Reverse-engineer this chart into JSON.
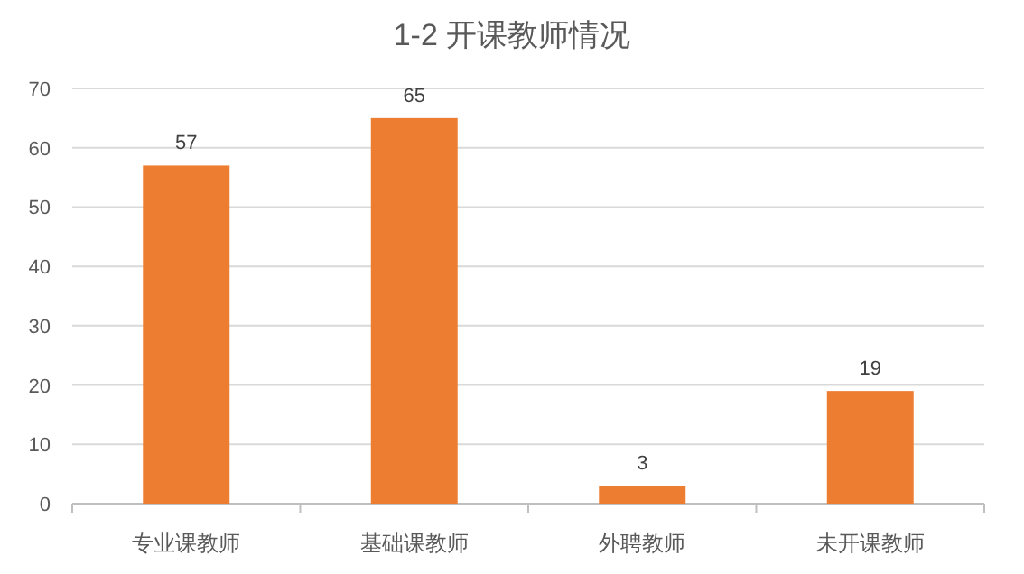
{
  "chart_data": {
    "type": "bar",
    "title": "1-2 开课教师情况",
    "categories": [
      "专业课教师",
      "基础课教师",
      "外聘教师",
      "未开课教师"
    ],
    "values": [
      57,
      65,
      3,
      19
    ],
    "color": "#ed7d31",
    "ylim": [
      0,
      70
    ],
    "yticks": [
      0,
      10,
      20,
      30,
      40,
      50,
      60,
      70
    ],
    "grid": "y",
    "data_labels": true
  }
}
